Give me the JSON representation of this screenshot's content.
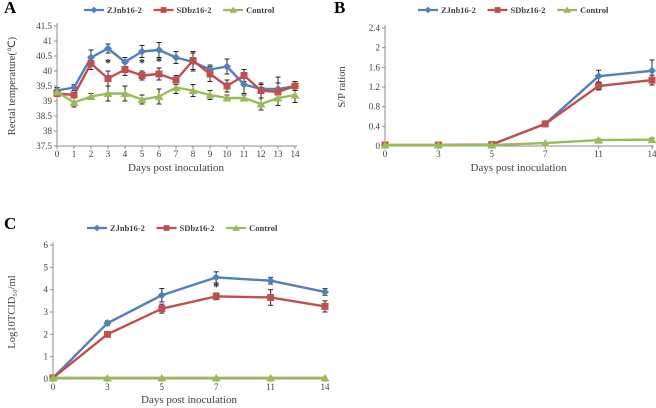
{
  "figure": {
    "xlabel": "Days post inoculation",
    "axis_color": "#8c8c8c",
    "text_color": "#404040",
    "error_color": "#262626"
  },
  "chart_data": [
    {
      "id": "A",
      "panel_label": "A",
      "type": "line",
      "xlabel": "Days post inoculation",
      "ylabel": "Rectal temperature(℃)",
      "ylim": [
        37.5,
        41.5
      ],
      "ytick_step": 0.5,
      "categories": [
        0,
        1,
        2,
        3,
        4,
        5,
        6,
        7,
        8,
        9,
        10,
        11,
        12,
        13,
        14
      ],
      "legend_position": "top-center",
      "grid": false,
      "series": [
        {
          "name": "ZJnb16-2",
          "color": "#4F81BD",
          "marker": "diamond",
          "values": [
            39.35,
            39.45,
            40.45,
            40.75,
            40.3,
            40.65,
            40.7,
            40.45,
            40.3,
            40.05,
            40.15,
            39.55,
            39.4,
            39.4,
            39.5
          ],
          "errors": [
            0.1,
            0.1,
            0.25,
            0.15,
            0.15,
            0.2,
            0.25,
            0.2,
            0.3,
            0.15,
            0.25,
            0.3,
            0.15,
            0.4,
            0.15
          ]
        },
        {
          "name": "SDbz16-2",
          "color": "#C0504D",
          "marker": "square",
          "values": [
            39.25,
            39.2,
            40.25,
            39.75,
            40.05,
            39.85,
            39.9,
            39.7,
            40.35,
            39.9,
            39.5,
            39.85,
            39.35,
            39.3,
            39.5
          ],
          "errors": [
            0.1,
            0.1,
            0.2,
            0.25,
            0.2,
            0.15,
            0.2,
            0.15,
            0.3,
            0.25,
            0.2,
            0.2,
            0.25,
            0.3,
            0.15
          ]
        },
        {
          "name": "Control",
          "color": "#9BBB59",
          "marker": "triangle",
          "values": [
            39.3,
            38.95,
            39.15,
            39.25,
            39.25,
            39.05,
            39.15,
            39.45,
            39.35,
            39.2,
            39.1,
            39.1,
            38.9,
            39.1,
            39.2
          ],
          "errors": [
            0.15,
            0.15,
            0.1,
            0.25,
            0.25,
            0.15,
            0.25,
            0.2,
            0.2,
            0.15,
            0.1,
            0.1,
            0.2,
            0.25,
            0.25
          ]
        }
      ],
      "annotations": [
        {
          "x": 3,
          "y": 40.25,
          "text": "*"
        },
        {
          "x": 5,
          "y": 40.25,
          "text": "*"
        },
        {
          "x": 6,
          "y": 40.3,
          "text": "*"
        }
      ]
    },
    {
      "id": "B",
      "panel_label": "B",
      "type": "line",
      "xlabel": "Days post inoculation",
      "ylabel": "S/P ration",
      "ylim": [
        0,
        2.4
      ],
      "ytick_step": 0.4,
      "categories": [
        0,
        3,
        5,
        7,
        11,
        14
      ],
      "legend_position": "top-center",
      "grid": false,
      "series": [
        {
          "name": "ZJnb16-2",
          "color": "#4F81BD",
          "marker": "diamond",
          "values": [
            0.02,
            0.02,
            0.03,
            0.45,
            1.42,
            1.53
          ],
          "errors": [
            0,
            0,
            0,
            0.02,
            0.12,
            0.22
          ]
        },
        {
          "name": "SDbz16-2",
          "color": "#C0504D",
          "marker": "square",
          "values": [
            0.02,
            0.02,
            0.03,
            0.45,
            1.22,
            1.34
          ],
          "errors": [
            0,
            0,
            0,
            0.02,
            0.08,
            0.1
          ]
        },
        {
          "name": "Control",
          "color": "#9BBB59",
          "marker": "triangle",
          "values": [
            0.02,
            0.02,
            0.02,
            0.06,
            0.12,
            0.13
          ],
          "errors": [
            0,
            0,
            0,
            0,
            0.02,
            0.03
          ]
        }
      ],
      "annotations": []
    },
    {
      "id": "C",
      "panel_label": "C",
      "type": "line",
      "xlabel": "Days post inoculation",
      "ylabel": "Log10TCID₅₀/ml",
      "ylim": [
        0,
        6
      ],
      "ytick_step": 1,
      "categories": [
        0,
        3,
        5,
        7,
        11,
        14
      ],
      "legend_position": "top-center",
      "grid": false,
      "series": [
        {
          "name": "ZJnb16-2",
          "color": "#4F81BD",
          "marker": "diamond",
          "values": [
            0.05,
            2.5,
            3.75,
            4.55,
            4.4,
            3.9
          ],
          "errors": [
            0,
            0.1,
            0.3,
            0.25,
            0.15,
            0.15
          ]
        },
        {
          "name": "SDbz16-2",
          "color": "#C0504D",
          "marker": "square",
          "values": [
            0.05,
            2.0,
            3.15,
            3.7,
            3.65,
            3.25
          ],
          "errors": [
            0,
            0.1,
            0.2,
            0.15,
            0.35,
            0.25
          ]
        },
        {
          "name": "Control",
          "color": "#9BBB59",
          "marker": "triangle",
          "values": [
            0.05,
            0.05,
            0.05,
            0.05,
            0.05,
            0.05
          ],
          "errors": [
            0,
            0,
            0,
            0,
            0,
            0
          ]
        }
      ],
      "annotations": [
        {
          "x": 7,
          "y": 4.1,
          "text": "*"
        }
      ]
    }
  ]
}
